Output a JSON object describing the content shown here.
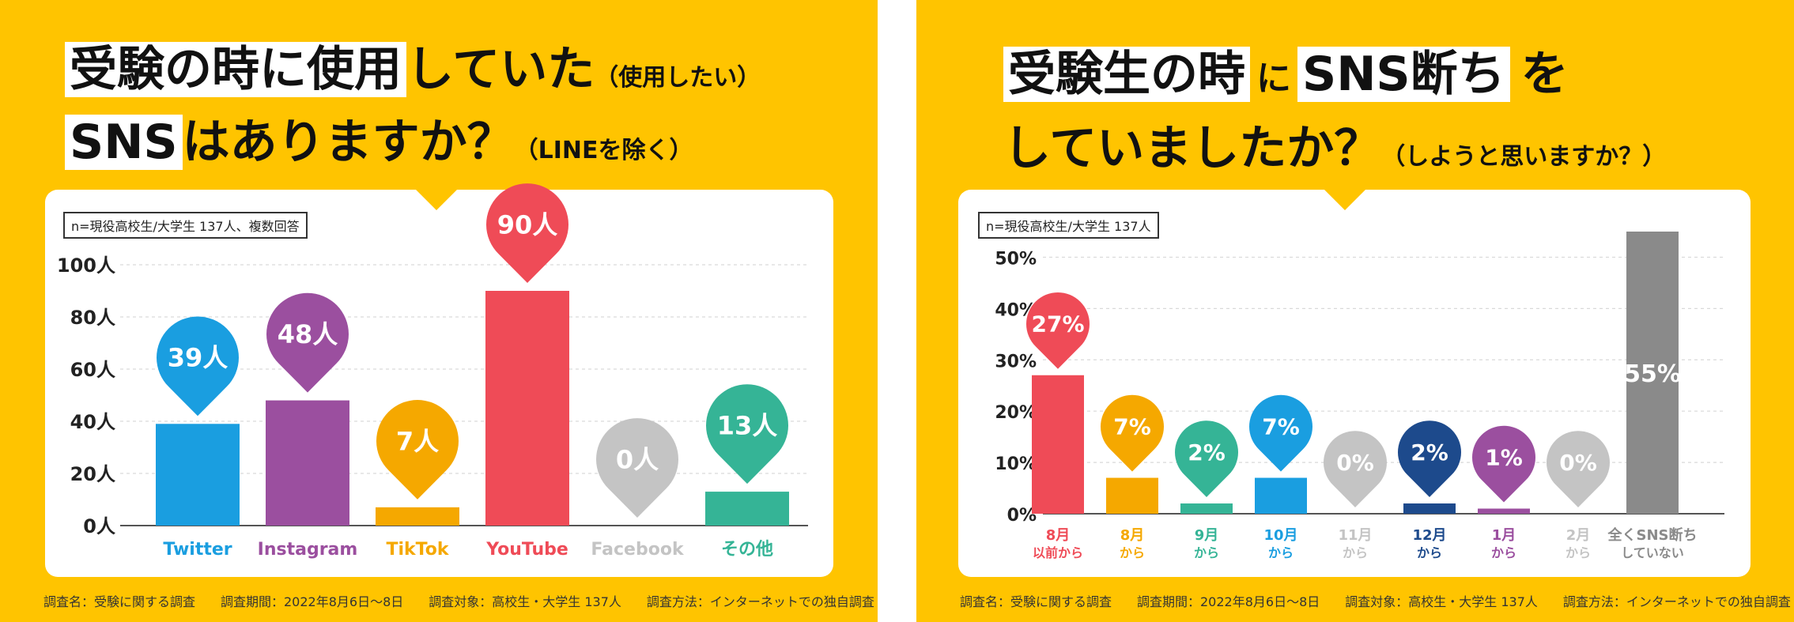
{
  "left": {
    "title": {
      "l1_hl": "受験の時に使用",
      "l1_rest": "していた",
      "l1_small": "（使用したい）",
      "l2_hl": "SNS",
      "l2_rest": "はありますか？",
      "l2_small": "（LINEを除く）"
    },
    "n_label": "n=現役高校生/大学生 137人、複数回答",
    "footer": "調査名：受験に関する調査　　調査期間：2022年8月6日〜8日　　調査対象：高校生・大学生 137人　　調査方法：インターネットでの独自調査"
  },
  "right": {
    "title": {
      "l1_hl1": "受験生の時",
      "l1_ni": "に",
      "l1_hl2": "SNS断ち",
      "l1_wo": "を",
      "l2_main": "していましたか？",
      "l2_small": "（しようと思いますか？）"
    },
    "n_label": "n=現役高校生/大学生 137人",
    "footer": "調査名：受験に関する調査　　調査期間：2022年8月6日〜8日　　調査対象：高校生・大学生 137人　　調査方法：インターネットでの独自調査"
  },
  "chart_data": [
    {
      "type": "bar",
      "categories": [
        "Twitter",
        "Instagram",
        "TikTok",
        "YouTube",
        "Facebook",
        "その他"
      ],
      "values": [
        39,
        48,
        7,
        90,
        0,
        13
      ],
      "value_labels": [
        "39人",
        "48人",
        "7人",
        "90人",
        "0人",
        "13人"
      ],
      "colors": [
        "#1a9ee0",
        "#9b4f9f",
        "#f5a800",
        "#ef4b57",
        "#c4c4c4",
        "#35b496"
      ],
      "yticks": [
        "0人",
        "20人",
        "40人",
        "60人",
        "80人",
        "100人"
      ],
      "ylim": [
        0,
        100
      ],
      "grid": true
    },
    {
      "type": "bar",
      "categories": [
        {
          "l1": "8月",
          "l2": "以前から"
        },
        {
          "l1": "8月",
          "l2": "から"
        },
        {
          "l1": "9月",
          "l2": "から"
        },
        {
          "l1": "10月",
          "l2": "から"
        },
        {
          "l1": "11月",
          "l2": "から"
        },
        {
          "l1": "12月",
          "l2": "から"
        },
        {
          "l1": "1月",
          "l2": "から"
        },
        {
          "l1": "2月",
          "l2": "から"
        },
        {
          "l1": "全くSNS断ち",
          "l2": "していない"
        }
      ],
      "values": [
        27,
        7,
        2,
        7,
        0,
        2,
        1,
        0,
        55
      ],
      "value_labels": [
        "27%",
        "7%",
        "2%",
        "7%",
        "0%",
        "2%",
        "1%",
        "0%",
        "55%"
      ],
      "colors": [
        "#ef4b57",
        "#f5a800",
        "#35b496",
        "#1a9ee0",
        "#c4c4c4",
        "#1d4a8c",
        "#9b4f9f",
        "#c4c4c4",
        "#8a8a8a"
      ],
      "yticks": [
        "0%",
        "10%",
        "20%",
        "30%",
        "40%",
        "50%"
      ],
      "ylim": [
        0,
        55
      ],
      "grid": true
    }
  ]
}
